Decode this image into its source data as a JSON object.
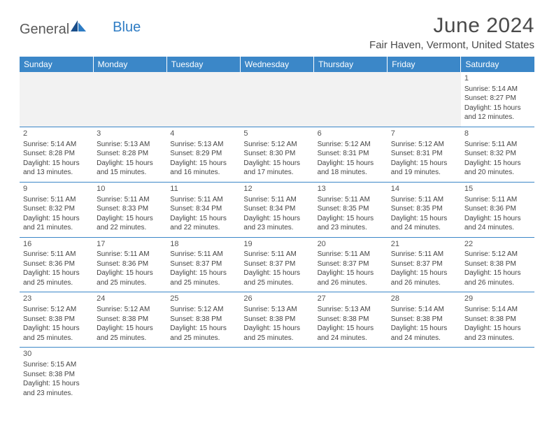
{
  "logo": {
    "general": "General",
    "blue": "Blue"
  },
  "title": "June 2024",
  "location": "Fair Haven, Vermont, United States",
  "colors": {
    "header_bg": "#3b87c8",
    "header_text": "#ffffff",
    "border": "#3b87c8",
    "empty_bg": "#f2f2f2",
    "text": "#444444",
    "title_text": "#4a4a4a",
    "logo_blue": "#2e7cc4"
  },
  "day_headers": [
    "Sunday",
    "Monday",
    "Tuesday",
    "Wednesday",
    "Thursday",
    "Friday",
    "Saturday"
  ],
  "weeks": [
    [
      null,
      null,
      null,
      null,
      null,
      null,
      {
        "n": "1",
        "sunrise": "5:14 AM",
        "sunset": "8:27 PM",
        "daylight": "15 hours and 12 minutes."
      }
    ],
    [
      {
        "n": "2",
        "sunrise": "5:14 AM",
        "sunset": "8:28 PM",
        "daylight": "15 hours and 13 minutes."
      },
      {
        "n": "3",
        "sunrise": "5:13 AM",
        "sunset": "8:28 PM",
        "daylight": "15 hours and 15 minutes."
      },
      {
        "n": "4",
        "sunrise": "5:13 AM",
        "sunset": "8:29 PM",
        "daylight": "15 hours and 16 minutes."
      },
      {
        "n": "5",
        "sunrise": "5:12 AM",
        "sunset": "8:30 PM",
        "daylight": "15 hours and 17 minutes."
      },
      {
        "n": "6",
        "sunrise": "5:12 AM",
        "sunset": "8:31 PM",
        "daylight": "15 hours and 18 minutes."
      },
      {
        "n": "7",
        "sunrise": "5:12 AM",
        "sunset": "8:31 PM",
        "daylight": "15 hours and 19 minutes."
      },
      {
        "n": "8",
        "sunrise": "5:11 AM",
        "sunset": "8:32 PM",
        "daylight": "15 hours and 20 minutes."
      }
    ],
    [
      {
        "n": "9",
        "sunrise": "5:11 AM",
        "sunset": "8:32 PM",
        "daylight": "15 hours and 21 minutes."
      },
      {
        "n": "10",
        "sunrise": "5:11 AM",
        "sunset": "8:33 PM",
        "daylight": "15 hours and 22 minutes."
      },
      {
        "n": "11",
        "sunrise": "5:11 AM",
        "sunset": "8:34 PM",
        "daylight": "15 hours and 22 minutes."
      },
      {
        "n": "12",
        "sunrise": "5:11 AM",
        "sunset": "8:34 PM",
        "daylight": "15 hours and 23 minutes."
      },
      {
        "n": "13",
        "sunrise": "5:11 AM",
        "sunset": "8:35 PM",
        "daylight": "15 hours and 23 minutes."
      },
      {
        "n": "14",
        "sunrise": "5:11 AM",
        "sunset": "8:35 PM",
        "daylight": "15 hours and 24 minutes."
      },
      {
        "n": "15",
        "sunrise": "5:11 AM",
        "sunset": "8:36 PM",
        "daylight": "15 hours and 24 minutes."
      }
    ],
    [
      {
        "n": "16",
        "sunrise": "5:11 AM",
        "sunset": "8:36 PM",
        "daylight": "15 hours and 25 minutes."
      },
      {
        "n": "17",
        "sunrise": "5:11 AM",
        "sunset": "8:36 PM",
        "daylight": "15 hours and 25 minutes."
      },
      {
        "n": "18",
        "sunrise": "5:11 AM",
        "sunset": "8:37 PM",
        "daylight": "15 hours and 25 minutes."
      },
      {
        "n": "19",
        "sunrise": "5:11 AM",
        "sunset": "8:37 PM",
        "daylight": "15 hours and 25 minutes."
      },
      {
        "n": "20",
        "sunrise": "5:11 AM",
        "sunset": "8:37 PM",
        "daylight": "15 hours and 26 minutes."
      },
      {
        "n": "21",
        "sunrise": "5:11 AM",
        "sunset": "8:37 PM",
        "daylight": "15 hours and 26 minutes."
      },
      {
        "n": "22",
        "sunrise": "5:12 AM",
        "sunset": "8:38 PM",
        "daylight": "15 hours and 26 minutes."
      }
    ],
    [
      {
        "n": "23",
        "sunrise": "5:12 AM",
        "sunset": "8:38 PM",
        "daylight": "15 hours and 25 minutes."
      },
      {
        "n": "24",
        "sunrise": "5:12 AM",
        "sunset": "8:38 PM",
        "daylight": "15 hours and 25 minutes."
      },
      {
        "n": "25",
        "sunrise": "5:12 AM",
        "sunset": "8:38 PM",
        "daylight": "15 hours and 25 minutes."
      },
      {
        "n": "26",
        "sunrise": "5:13 AM",
        "sunset": "8:38 PM",
        "daylight": "15 hours and 25 minutes."
      },
      {
        "n": "27",
        "sunrise": "5:13 AM",
        "sunset": "8:38 PM",
        "daylight": "15 hours and 24 minutes."
      },
      {
        "n": "28",
        "sunrise": "5:14 AM",
        "sunset": "8:38 PM",
        "daylight": "15 hours and 24 minutes."
      },
      {
        "n": "29",
        "sunrise": "5:14 AM",
        "sunset": "8:38 PM",
        "daylight": "15 hours and 23 minutes."
      }
    ],
    [
      {
        "n": "30",
        "sunrise": "5:15 AM",
        "sunset": "8:38 PM",
        "daylight": "15 hours and 23 minutes."
      },
      null,
      null,
      null,
      null,
      null,
      null
    ]
  ],
  "labels": {
    "sunrise": "Sunrise: ",
    "sunset": "Sunset: ",
    "daylight": "Daylight: "
  }
}
